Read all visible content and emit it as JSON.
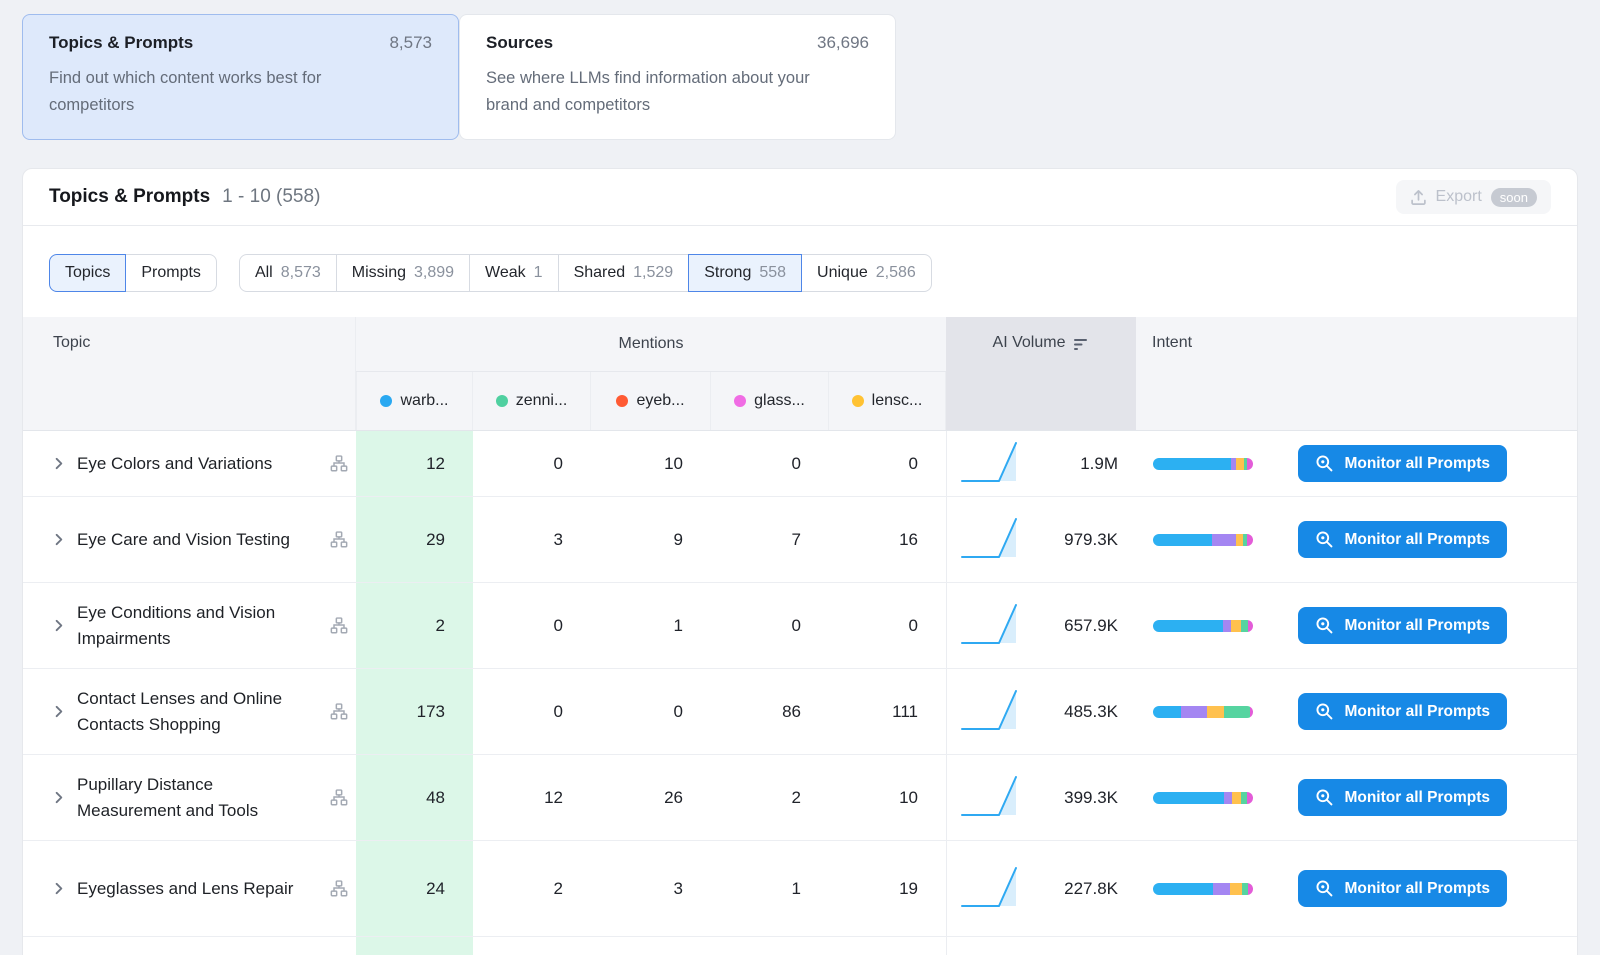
{
  "cards": [
    {
      "title": "Topics & Prompts",
      "value": "8,573",
      "description": "Find out which content works best for competitors",
      "selected": true
    },
    {
      "title": "Sources",
      "value": "36,696",
      "description": "See where LLMs find information about your brand and competitors",
      "selected": false
    }
  ],
  "panel": {
    "title": "Topics & Prompts",
    "range": "1 - 10 (558)",
    "export_label": "Export",
    "export_badge": "soon"
  },
  "view_toggle": [
    {
      "label": "Topics",
      "selected": true
    },
    {
      "label": "Prompts",
      "selected": false
    }
  ],
  "filters": [
    {
      "label": "All",
      "count": "8,573",
      "selected": false
    },
    {
      "label": "Missing",
      "count": "3,899",
      "selected": false
    },
    {
      "label": "Weak",
      "count": "1",
      "selected": false
    },
    {
      "label": "Shared",
      "count": "1,529",
      "selected": false
    },
    {
      "label": "Strong",
      "count": "558",
      "selected": true
    },
    {
      "label": "Unique",
      "count": "2,586",
      "selected": false
    }
  ],
  "table": {
    "columns": {
      "topic": "Topic",
      "mentions": "Mentions",
      "ai_volume": "AI Volume",
      "intent": "Intent"
    },
    "competitors": [
      {
        "label": "warb...",
        "color": "#29A8F1"
      },
      {
        "label": "zenni...",
        "color": "#4FD0A0"
      },
      {
        "label": "eyeb...",
        "color": "#FF5A33"
      },
      {
        "label": "glass...",
        "color": "#F06CE4"
      },
      {
        "label": "lensc...",
        "color": "#FFC233"
      }
    ],
    "intent_colors": [
      "#2CB0F2",
      "#A486F2",
      "#FFC14E",
      "#56D4A0",
      "#E35CD8"
    ],
    "action_label": "Monitor all Prompts",
    "rows": [
      {
        "topic": "Eye Colors and Variations",
        "mentions": [
          "12",
          "0",
          "10",
          "0",
          "0"
        ],
        "ai_volume": "1.9M",
        "intent": [
          78,
          5,
          8,
          3,
          6
        ]
      },
      {
        "topic": "Eye Care and Vision Testing",
        "mentions": [
          "29",
          "3",
          "9",
          "7",
          "16"
        ],
        "ai_volume": "979.3K",
        "intent": [
          59,
          24,
          7,
          4,
          6
        ]
      },
      {
        "topic": "Eye Conditions and Vision Impairments",
        "mentions": [
          "2",
          "0",
          "1",
          "0",
          "0"
        ],
        "ai_volume": "657.9K",
        "intent": [
          70,
          8,
          10,
          7,
          5
        ]
      },
      {
        "topic": "Contact Lenses and Online Contacts Shopping",
        "mentions": [
          "173",
          "0",
          "0",
          "86",
          "111"
        ],
        "ai_volume": "485.3K",
        "intent": [
          28,
          26,
          17,
          26,
          3
        ]
      },
      {
        "topic": "Pupillary Distance Measurement and Tools",
        "mentions": [
          "48",
          "12",
          "26",
          "2",
          "10"
        ],
        "ai_volume": "399.3K",
        "intent": [
          71,
          8,
          9,
          6,
          6
        ]
      },
      {
        "topic": "Eyeglasses and Lens Repair",
        "mentions": [
          "24",
          "2",
          "3",
          "1",
          "19"
        ],
        "ai_volume": "227.8K",
        "intent": [
          60,
          17,
          12,
          6,
          5
        ]
      }
    ]
  }
}
